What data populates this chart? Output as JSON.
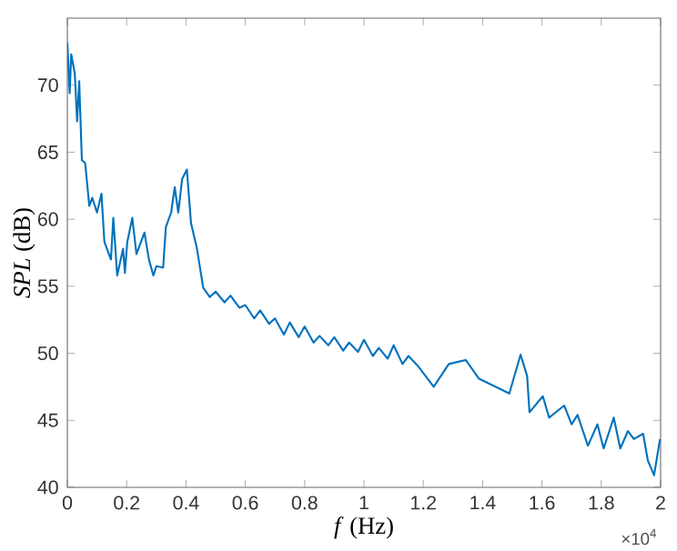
{
  "chart_data": {
    "type": "line",
    "xlabel": "*f* (Hz)",
    "ylabel": "*SPL* (dB)",
    "annotations": [
      "×10$^{4}$"
    ],
    "xlim": [
      0,
      2
    ],
    "ylim": [
      40,
      75
    ],
    "xticks": [
      0,
      0.2,
      0.4,
      0.6,
      0.8,
      1,
      1.2,
      1.4,
      1.6,
      1.8,
      2
    ],
    "yticks": [
      40,
      45,
      50,
      55,
      60,
      65,
      70
    ],
    "grid": false,
    "marker": "none",
    "line_style": "solid",
    "series": [
      {
        "color": "#0072bd",
        "x": [
          0,
          0.008,
          0.013,
          0.025,
          0.033,
          0.04,
          0.049,
          0.06,
          0.074,
          0.084,
          0.1,
          0.115,
          0.125,
          0.147,
          0.155,
          0.168,
          0.188,
          0.194,
          0.202,
          0.219,
          0.233,
          0.26,
          0.275,
          0.29,
          0.3,
          0.323,
          0.332,
          0.35,
          0.362,
          0.374,
          0.387,
          0.403,
          0.417,
          0.437,
          0.458,
          0.48,
          0.5,
          0.53,
          0.55,
          0.58,
          0.6,
          0.63,
          0.65,
          0.68,
          0.7,
          0.73,
          0.75,
          0.78,
          0.8,
          0.83,
          0.85,
          0.88,
          0.9,
          0.93,
          0.95,
          0.98,
          1.0,
          1.03,
          1.05,
          1.08,
          1.1,
          1.13,
          1.15,
          1.184,
          1.235,
          1.286,
          1.343,
          1.388,
          1.49,
          1.528,
          1.55,
          1.558,
          1.603,
          1.624,
          1.675,
          1.7,
          1.72,
          1.755,
          1.787,
          1.808,
          1.842,
          1.864,
          1.89,
          1.91,
          1.941,
          1.957,
          1.978,
          1.998
        ],
        "values": [
          73.2,
          69.4,
          72.3,
          70.9,
          67.3,
          70.3,
          64.4,
          64.2,
          61.0,
          61.6,
          60.5,
          61.9,
          58.3,
          57.0,
          60.1,
          55.8,
          57.8,
          56.0,
          58.3,
          60.1,
          57.4,
          59.0,
          57.0,
          55.8,
          56.5,
          56.4,
          59.4,
          60.5,
          62.4,
          60.5,
          63.0,
          63.7,
          59.7,
          57.8,
          54.9,
          54.2,
          54.6,
          53.8,
          54.3,
          53.4,
          53.6,
          52.6,
          53.2,
          52.2,
          52.6,
          51.4,
          52.3,
          51.2,
          52.0,
          50.8,
          51.3,
          50.6,
          51.2,
          50.2,
          50.8,
          50.1,
          51.0,
          49.8,
          50.4,
          49.6,
          50.6,
          49.2,
          49.8,
          49.0,
          47.5,
          49.2,
          49.5,
          48.1,
          47.0,
          49.9,
          48.3,
          45.6,
          46.8,
          45.2,
          46.1,
          44.7,
          45.4,
          43.1,
          44.7,
          42.9,
          45.2,
          42.9,
          44.2,
          43.6,
          44.0,
          42.0,
          40.9,
          43.6
        ]
      }
    ]
  }
}
